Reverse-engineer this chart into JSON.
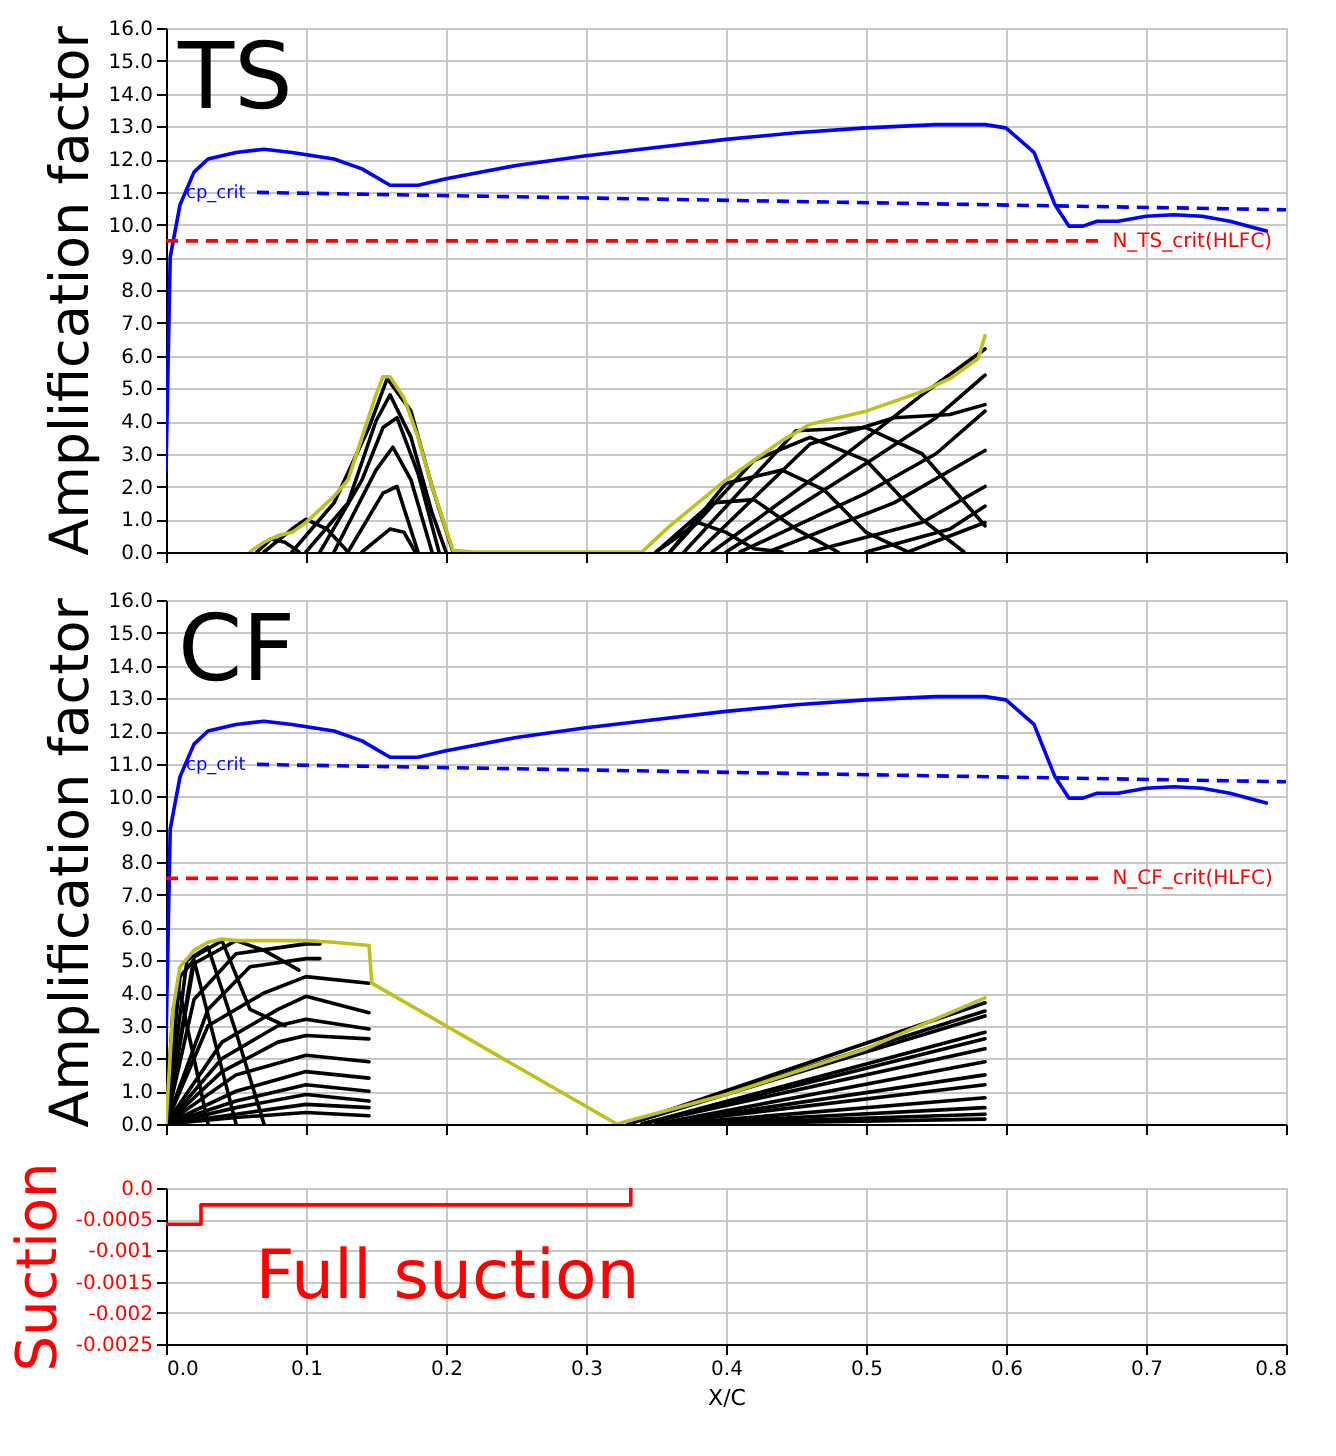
{
  "chart_data": [
    {
      "type": "line",
      "ylabel": "Amplification factor",
      "annotations": [
        "TS"
      ],
      "xlim": [
        0,
        0.8
      ],
      "xticks": [
        0,
        0.1,
        0.2,
        0.3,
        0.4,
        0.5,
        0.6,
        0.7,
        0.8
      ],
      "ylim": [
        0,
        16
      ],
      "yticks": [
        {
          "value": 0,
          "label": "0.0"
        },
        {
          "value": 1,
          "label": "1.0"
        },
        {
          "value": 2,
          "label": "2.0"
        },
        {
          "value": 3,
          "label": "3.0"
        },
        {
          "value": 4,
          "label": "4.0"
        },
        {
          "value": 5,
          "label": "5.0"
        },
        {
          "value": 6,
          "label": "6.0"
        },
        {
          "value": 7,
          "label": "7.0"
        },
        {
          "value": 8,
          "label": "8.0"
        },
        {
          "value": 9,
          "label": "9.0"
        },
        {
          "value": 10,
          "label": "10.0"
        },
        {
          "value": 11,
          "label": "11.0"
        },
        {
          "value": 12,
          "label": "12.0"
        },
        {
          "value": 13,
          "label": "13.0"
        },
        {
          "value": 14,
          "label": "14.0"
        },
        {
          "value": 15,
          "label": "15.0"
        },
        {
          "value": 16,
          "label": "16.0"
        }
      ],
      "grid": true,
      "tick_labels": "y",
      "ref_lines": [
        {
          "axis": "y",
          "value": 9.5,
          "label": "N_TS_crit(HLFC)",
          "color": "#ff0000",
          "line_style": "dashed"
        }
      ],
      "series": [
        {
          "color": "#000000",
          "x": [
            0.065,
            0.075,
            0.085,
            0.095
          ],
          "values": [
            0,
            0.4,
            0.3,
            0
          ]
        },
        {
          "color": "#000000",
          "x": [
            0.07,
            0.09,
            0.1,
            0.115,
            0.13
          ],
          "values": [
            0,
            0.7,
            1.0,
            0.7,
            0
          ]
        },
        {
          "color": "#000000",
          "x": [
            0.09,
            0.12,
            0.145,
            0.158,
            0.175,
            0.19,
            0.205
          ],
          "values": [
            0,
            1.5,
            3.8,
            5.3,
            4.3,
            2.0,
            0
          ]
        },
        {
          "color": "#000000",
          "x": [
            0.1,
            0.13,
            0.15,
            0.16,
            0.175,
            0.19,
            0.2
          ],
          "values": [
            0,
            1.5,
            4.0,
            4.8,
            3.5,
            1.2,
            0
          ]
        },
        {
          "color": "#000000",
          "x": [
            0.11,
            0.14,
            0.155,
            0.165,
            0.18,
            0.195
          ],
          "values": [
            0,
            2.2,
            3.8,
            4.1,
            2.4,
            0
          ]
        },
        {
          "color": "#000000",
          "x": [
            0.12,
            0.15,
            0.162,
            0.175,
            0.19
          ],
          "values": [
            0,
            2.5,
            3.2,
            2.2,
            0
          ]
        },
        {
          "color": "#000000",
          "x": [
            0.13,
            0.155,
            0.165,
            0.18
          ],
          "values": [
            0,
            1.8,
            2.0,
            0
          ]
        },
        {
          "color": "#000000",
          "x": [
            0.14,
            0.16,
            0.17,
            0.178
          ],
          "values": [
            0,
            0.7,
            0.6,
            0
          ]
        },
        {
          "color": "#000000",
          "x": [
            0.35,
            0.38,
            0.4,
            0.42,
            0.44
          ],
          "values": [
            0,
            0.9,
            0.6,
            0.1,
            0
          ]
        },
        {
          "color": "#000000",
          "x": [
            0.35,
            0.39,
            0.42,
            0.45,
            0.48
          ],
          "values": [
            0,
            1.5,
            1.6,
            0.7,
            0
          ]
        },
        {
          "color": "#000000",
          "x": [
            0.36,
            0.4,
            0.44,
            0.47,
            0.5,
            0.53
          ],
          "values": [
            0,
            2.1,
            2.5,
            1.9,
            0.6,
            0
          ]
        },
        {
          "color": "#000000",
          "x": [
            0.36,
            0.42,
            0.46,
            0.5,
            0.54,
            0.57
          ],
          "values": [
            0,
            2.8,
            3.5,
            2.8,
            1.0,
            0
          ]
        },
        {
          "color": "#000000",
          "x": [
            0.37,
            0.45,
            0.5,
            0.54,
            0.585
          ],
          "values": [
            0,
            3.7,
            3.8,
            3.0,
            0.8
          ]
        },
        {
          "color": "#000000",
          "x": [
            0.38,
            0.46,
            0.52,
            0.56,
            0.585
          ],
          "values": [
            0,
            3.3,
            4.1,
            4.2,
            4.5
          ]
        },
        {
          "color": "#000000",
          "x": [
            0.39,
            0.48,
            0.54,
            0.585
          ],
          "values": [
            0,
            2.8,
            4.8,
            6.2
          ]
        },
        {
          "color": "#000000",
          "x": [
            0.4,
            0.5,
            0.55,
            0.585
          ],
          "values": [
            0,
            2.7,
            4.1,
            5.4
          ]
        },
        {
          "color": "#000000",
          "x": [
            0.41,
            0.5,
            0.55,
            0.585
          ],
          "values": [
            0,
            1.8,
            3.0,
            4.3
          ]
        },
        {
          "color": "#000000",
          "x": [
            0.43,
            0.52,
            0.585
          ],
          "values": [
            0,
            1.5,
            3.1
          ]
        },
        {
          "color": "#000000",
          "x": [
            0.46,
            0.54,
            0.585
          ],
          "values": [
            0,
            0.9,
            2.0
          ]
        },
        {
          "color": "#000000",
          "x": [
            0.5,
            0.56,
            0.585
          ],
          "values": [
            0,
            0.7,
            1.4
          ]
        },
        {
          "color": "#000000",
          "x": [
            0.53,
            0.585
          ],
          "values": [
            0,
            0.9
          ]
        },
        {
          "color": "#bfbf1f",
          "x": [
            0.06,
            0.07,
            0.08,
            0.09,
            0.1,
            0.11,
            0.12,
            0.13,
            0.14,
            0.15,
            0.155,
            0.16,
            0.17,
            0.18,
            0.19,
            0.2,
            0.205,
            0.22,
            0.34,
            0.35,
            0.36,
            0.38,
            0.4,
            0.42,
            0.44,
            0.46,
            0.48,
            0.5,
            0.52,
            0.54,
            0.56,
            0.58,
            0.585
          ],
          "values": [
            0,
            0.3,
            0.5,
            0.6,
            0.9,
            1.3,
            1.7,
            2.2,
            3.5,
            4.8,
            5.35,
            5.35,
            4.7,
            3.5,
            2.0,
            0.7,
            0.05,
            0,
            0,
            0.4,
            0.8,
            1.5,
            2.2,
            2.8,
            3.4,
            3.9,
            4.1,
            4.3,
            4.6,
            4.9,
            5.3,
            5.9,
            6.6
          ]
        },
        {
          "name": "cp_crit",
          "color": "#0000ff",
          "line_style": "dashed",
          "x": [
            0.065,
            0.8
          ],
          "values": [
            10.98,
            10.45
          ]
        },
        {
          "color": "#0000ff",
          "x": [
            0.0,
            0.003,
            0.01,
            0.02,
            0.03,
            0.05,
            0.07,
            0.09,
            0.12,
            0.14,
            0.16,
            0.18,
            0.2,
            0.25,
            0.3,
            0.35,
            0.4,
            0.45,
            0.5,
            0.55,
            0.585,
            0.6,
            0.62,
            0.635,
            0.645,
            0.655,
            0.665,
            0.68,
            0.7,
            0.72,
            0.74,
            0.76,
            0.786
          ],
          "values": [
            2.5,
            9,
            10.6,
            11.6,
            12.0,
            12.2,
            12.3,
            12.2,
            12.0,
            11.7,
            11.2,
            11.2,
            11.4,
            11.8,
            12.1,
            12.35,
            12.6,
            12.8,
            12.95,
            13.05,
            13.05,
            12.95,
            12.2,
            10.6,
            9.95,
            9.95,
            10.1,
            10.1,
            10.25,
            10.3,
            10.25,
            10.1,
            9.8
          ]
        }
      ]
    },
    {
      "type": "line",
      "ylabel": "Amplification factor",
      "annotations": [
        "CF"
      ],
      "xlim": [
        0,
        0.8
      ],
      "xticks": [
        0,
        0.1,
        0.2,
        0.3,
        0.4,
        0.5,
        0.6,
        0.7,
        0.8
      ],
      "ylim": [
        0,
        16
      ],
      "yticks": [
        {
          "value": 0,
          "label": "0.0"
        },
        {
          "value": 1,
          "label": "1.0"
        },
        {
          "value": 2,
          "label": "2.0"
        },
        {
          "value": 3,
          "label": "3.0"
        },
        {
          "value": 4,
          "label": "4.0"
        },
        {
          "value": 5,
          "label": "5.0"
        },
        {
          "value": 6,
          "label": "6.0"
        },
        {
          "value": 7,
          "label": "7.0"
        },
        {
          "value": 8,
          "label": "8.0"
        },
        {
          "value": 9,
          "label": "9.0"
        },
        {
          "value": 10,
          "label": "10.0"
        },
        {
          "value": 11,
          "label": "11.0"
        },
        {
          "value": 12,
          "label": "12.0"
        },
        {
          "value": 13,
          "label": "13.0"
        },
        {
          "value": 14,
          "label": "14.0"
        },
        {
          "value": 15,
          "label": "15.0"
        },
        {
          "value": 16,
          "label": "16.0"
        }
      ],
      "grid": true,
      "tick_labels": "y",
      "ref_lines": [
        {
          "axis": "y",
          "value": 7.5,
          "label": "N_CF_crit(HLFC)",
          "color": "#ff0000",
          "line_style": "dashed"
        }
      ],
      "series": [
        {
          "color": "#000000",
          "x": [
            0,
            0.005,
            0.01,
            0.02,
            0.03
          ],
          "values": [
            0,
            3.5,
            4.0,
            2.0,
            0
          ]
        },
        {
          "color": "#000000",
          "x": [
            0,
            0.01,
            0.02,
            0.035,
            0.05
          ],
          "values": [
            0,
            4.5,
            5.0,
            2.5,
            0
          ]
        },
        {
          "color": "#000000",
          "x": [
            0,
            0.015,
            0.03,
            0.05,
            0.07
          ],
          "values": [
            0,
            5.0,
            5.4,
            2.8,
            0
          ]
        },
        {
          "color": "#000000",
          "x": [
            0,
            0.02,
            0.04,
            0.06,
            0.085
          ],
          "values": [
            0,
            5.1,
            5.6,
            3.5,
            3.0
          ]
        },
        {
          "color": "#000000",
          "x": [
            0,
            0.02,
            0.05,
            0.07,
            0.095
          ],
          "values": [
            0,
            4.9,
            5.6,
            5.3,
            4.7
          ]
        },
        {
          "color": "#000000",
          "x": [
            0,
            0.02,
            0.05,
            0.1,
            0.11
          ],
          "values": [
            0,
            3.8,
            5.2,
            5.5,
            5.5
          ]
        },
        {
          "color": "#000000",
          "x": [
            0,
            0.03,
            0.06,
            0.1,
            0.11
          ],
          "values": [
            0,
            3.5,
            4.8,
            5.05,
            5.05
          ]
        },
        {
          "color": "#000000",
          "x": [
            0,
            0.03,
            0.07,
            0.1,
            0.145
          ],
          "values": [
            0,
            3.0,
            4.0,
            4.5,
            4.3
          ]
        },
        {
          "color": "#000000",
          "x": [
            0,
            0.04,
            0.08,
            0.1,
            0.145
          ],
          "values": [
            0,
            2.5,
            3.5,
            3.9,
            3.4
          ]
        },
        {
          "color": "#000000",
          "x": [
            0,
            0.04,
            0.08,
            0.1,
            0.145
          ],
          "values": [
            0,
            2.0,
            3.0,
            3.2,
            2.9
          ]
        },
        {
          "color": "#000000",
          "x": [
            0,
            0.04,
            0.08,
            0.1,
            0.145
          ],
          "values": [
            0,
            1.6,
            2.5,
            2.7,
            2.6
          ]
        },
        {
          "color": "#000000",
          "x": [
            0,
            0.05,
            0.1,
            0.145
          ],
          "values": [
            0,
            1.5,
            2.1,
            1.9
          ]
        },
        {
          "color": "#000000",
          "x": [
            0,
            0.05,
            0.1,
            0.145
          ],
          "values": [
            0,
            1.0,
            1.6,
            1.4
          ]
        },
        {
          "color": "#000000",
          "x": [
            0,
            0.05,
            0.1,
            0.145
          ],
          "values": [
            0,
            0.7,
            1.2,
            1.0
          ]
        },
        {
          "color": "#000000",
          "x": [
            0,
            0.05,
            0.1,
            0.145
          ],
          "values": [
            0,
            0.5,
            0.9,
            0.7
          ]
        },
        {
          "color": "#000000",
          "x": [
            0,
            0.05,
            0.1,
            0.145
          ],
          "values": [
            0,
            0.3,
            0.6,
            0.5
          ]
        },
        {
          "color": "#000000",
          "x": [
            0,
            0.05,
            0.1,
            0.145
          ],
          "values": [
            0,
            0.2,
            0.35,
            0.25
          ]
        },
        {
          "color": "#000000",
          "x": [
            0.33,
            0.585
          ],
          "values": [
            0,
            3.7
          ]
        },
        {
          "color": "#000000",
          "x": [
            0.33,
            0.585
          ],
          "values": [
            0,
            3.45
          ]
        },
        {
          "color": "#000000",
          "x": [
            0.33,
            0.585
          ],
          "values": [
            0,
            3.3
          ]
        },
        {
          "color": "#000000",
          "x": [
            0.34,
            0.585
          ],
          "values": [
            0,
            2.8
          ]
        },
        {
          "color": "#000000",
          "x": [
            0.34,
            0.585
          ],
          "values": [
            0,
            2.6
          ]
        },
        {
          "color": "#000000",
          "x": [
            0.34,
            0.585
          ],
          "values": [
            0,
            2.3
          ]
        },
        {
          "color": "#000000",
          "x": [
            0.35,
            0.585
          ],
          "values": [
            0,
            1.9
          ]
        },
        {
          "color": "#000000",
          "x": [
            0.35,
            0.585
          ],
          "values": [
            0,
            1.5
          ]
        },
        {
          "color": "#000000",
          "x": [
            0.35,
            0.585
          ],
          "values": [
            0,
            1.2
          ]
        },
        {
          "color": "#000000",
          "x": [
            0.36,
            0.585
          ],
          "values": [
            0,
            0.8
          ]
        },
        {
          "color": "#000000",
          "x": [
            0.36,
            0.585
          ],
          "values": [
            0,
            0.5
          ]
        },
        {
          "color": "#000000",
          "x": [
            0.37,
            0.585
          ],
          "values": [
            0,
            0.3
          ]
        },
        {
          "color": "#000000",
          "x": [
            0.38,
            0.585
          ],
          "values": [
            0,
            0.15
          ]
        },
        {
          "color": "#bfbf1f",
          "x": [
            0.0,
            0.005,
            0.01,
            0.02,
            0.03,
            0.04,
            0.05,
            0.08,
            0.1,
            0.12,
            0.145,
            0.147,
            0.322,
            0.4,
            0.5,
            0.585
          ],
          "values": [
            0,
            3.5,
            4.8,
            5.3,
            5.55,
            5.65,
            5.6,
            5.6,
            5.6,
            5.55,
            5.45,
            4.3,
            0,
            0.9,
            2.3,
            3.85
          ]
        },
        {
          "name": "cp_crit",
          "color": "#0000ff",
          "line_style": "dashed",
          "x": [
            0.065,
            0.8
          ],
          "values": [
            10.98,
            10.45
          ]
        },
        {
          "color": "#0000ff",
          "x": [
            0.0,
            0.003,
            0.01,
            0.02,
            0.03,
            0.05,
            0.07,
            0.09,
            0.12,
            0.14,
            0.16,
            0.18,
            0.2,
            0.25,
            0.3,
            0.35,
            0.4,
            0.45,
            0.5,
            0.55,
            0.585,
            0.6,
            0.62,
            0.635,
            0.645,
            0.655,
            0.665,
            0.68,
            0.7,
            0.72,
            0.74,
            0.76,
            0.786
          ],
          "values": [
            2.5,
            9,
            10.6,
            11.6,
            12.0,
            12.2,
            12.3,
            12.2,
            12.0,
            11.7,
            11.2,
            11.2,
            11.4,
            11.8,
            12.1,
            12.35,
            12.6,
            12.8,
            12.95,
            13.05,
            13.05,
            12.95,
            12.2,
            10.6,
            9.95,
            9.95,
            10.1,
            10.1,
            10.25,
            10.3,
            10.25,
            10.1,
            9.8
          ]
        }
      ]
    },
    {
      "type": "step",
      "ylabel": "Suction",
      "xlabel": "X/C",
      "annotations": [
        "Full suction"
      ],
      "xlim": [
        0,
        0.8
      ],
      "xticks": [
        {
          "value": 0,
          "label": "0.0"
        },
        0.1,
        0.2,
        0.3,
        0.4,
        0.5,
        0.6,
        0.7,
        0.8
      ],
      "ylim": [
        -0.0025,
        0
      ],
      "yticks": [
        {
          "value": 0,
          "label": "0.0"
        },
        -0.0005,
        -0.001,
        -0.0015,
        -0.002,
        -0.0025
      ],
      "grid": true,
      "series": [
        {
          "color": "#ff0000",
          "x": [
            0,
            0.025,
            0.332
          ],
          "values": [
            -0.00058,
            -0.00027,
            0
          ]
        }
      ]
    }
  ]
}
